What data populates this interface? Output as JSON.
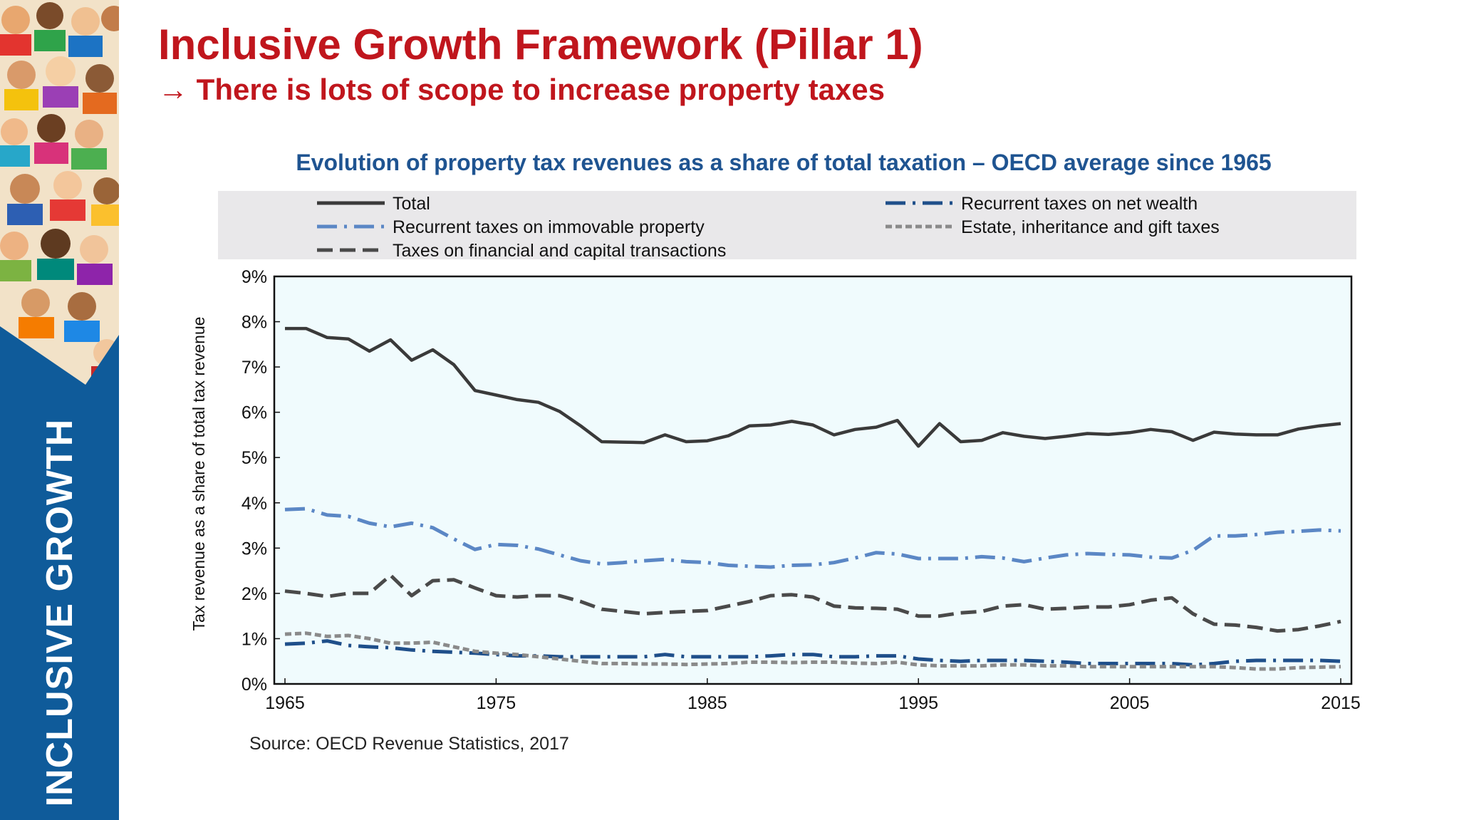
{
  "slide": {
    "title": "Inclusive Growth Framework (Pillar 1)",
    "subtitle": "→ There is lots of scope to increase property taxes",
    "sidebar_label": "INCLUSIVE GROWTH",
    "source": "Source: OECD Revenue Statistics, 2017"
  },
  "colors": {
    "title": "#c0161d",
    "chart_title": "#1f5491",
    "sidebar": "#0f5b9a",
    "plot_bg": "#f0fbfd",
    "legend_bg": "#e9e8ea"
  },
  "chart_data": {
    "type": "line",
    "title": "Evolution of property tax revenues as a share of total taxation – OECD average since 1965",
    "ylabel": "Tax revenue as a share of total tax revenue",
    "xlabel": "",
    "xlim": [
      1965,
      2015
    ],
    "ylim": [
      0,
      9
    ],
    "x_ticks": [
      "1965",
      "1975",
      "1985",
      "1995",
      "2005",
      "2015"
    ],
    "y_ticks": [
      "0%",
      "1%",
      "2%",
      "3%",
      "4%",
      "5%",
      "6%",
      "7%",
      "8%",
      "9%"
    ],
    "legend_position": "top",
    "grid": false,
    "x": [
      1965,
      1966,
      1967,
      1968,
      1969,
      1970,
      1971,
      1972,
      1973,
      1974,
      1975,
      1976,
      1977,
      1978,
      1979,
      1980,
      1981,
      1982,
      1983,
      1984,
      1985,
      1986,
      1987,
      1988,
      1989,
      1990,
      1991,
      1992,
      1993,
      1994,
      1995,
      1996,
      1997,
      1998,
      1999,
      2000,
      2001,
      2002,
      2003,
      2004,
      2005,
      2006,
      2007,
      2008,
      2009,
      2010,
      2011,
      2012,
      2013,
      2014,
      2015
    ],
    "series": [
      {
        "name": "Total",
        "style": "solid",
        "color": "#3a3a3a",
        "values": [
          7.85,
          7.85,
          7.65,
          7.62,
          7.35,
          7.6,
          7.15,
          7.38,
          7.05,
          6.48,
          6.38,
          6.28,
          6.22,
          6.02,
          5.7,
          5.35,
          5.34,
          5.33,
          5.5,
          5.35,
          5.37,
          5.48,
          5.7,
          5.72,
          5.8,
          5.72,
          5.5,
          5.62,
          5.67,
          5.82,
          5.25,
          5.75,
          5.35,
          5.38,
          5.55,
          5.47,
          5.42,
          5.47,
          5.53,
          5.51,
          5.55,
          5.62,
          5.57,
          5.38,
          5.56,
          5.52,
          5.5,
          5.5,
          5.63,
          5.7,
          5.75
        ]
      },
      {
        "name": "Recurrent taxes on immovable property",
        "style": "dashdot",
        "color": "#5b87c5",
        "values": [
          3.85,
          3.87,
          3.73,
          3.7,
          3.55,
          3.47,
          3.55,
          3.45,
          3.2,
          2.97,
          3.08,
          3.06,
          2.98,
          2.85,
          2.72,
          2.65,
          2.68,
          2.72,
          2.75,
          2.7,
          2.68,
          2.62,
          2.6,
          2.58,
          2.62,
          2.63,
          2.68,
          2.78,
          2.9,
          2.87,
          2.77,
          2.77,
          2.77,
          2.81,
          2.78,
          2.7,
          2.78,
          2.85,
          2.88,
          2.86,
          2.85,
          2.8,
          2.78,
          2.95,
          3.27,
          3.27,
          3.3,
          3.35,
          3.37,
          3.4,
          3.38
        ]
      },
      {
        "name": "Taxes on financial and capital transactions",
        "style": "dash",
        "color": "#4a4a4a",
        "values": [
          2.05,
          2.0,
          1.93,
          2.0,
          2.0,
          2.4,
          1.95,
          2.28,
          2.3,
          2.12,
          1.95,
          1.92,
          1.95,
          1.95,
          1.82,
          1.65,
          1.6,
          1.55,
          1.58,
          1.6,
          1.62,
          1.72,
          1.82,
          1.95,
          1.97,
          1.92,
          1.72,
          1.68,
          1.67,
          1.65,
          1.5,
          1.5,
          1.57,
          1.6,
          1.72,
          1.75,
          1.65,
          1.67,
          1.7,
          1.7,
          1.75,
          1.85,
          1.9,
          1.55,
          1.32,
          1.3,
          1.25,
          1.17,
          1.2,
          1.28,
          1.38
        ]
      },
      {
        "name": "Recurrent taxes on net wealth",
        "style": "dashdot",
        "color": "#1f4f8a",
        "values": [
          0.88,
          0.9,
          0.95,
          0.85,
          0.82,
          0.8,
          0.75,
          0.72,
          0.7,
          0.68,
          0.65,
          0.62,
          0.62,
          0.6,
          0.6,
          0.6,
          0.6,
          0.6,
          0.65,
          0.6,
          0.6,
          0.6,
          0.6,
          0.62,
          0.65,
          0.65,
          0.6,
          0.6,
          0.62,
          0.62,
          0.55,
          0.52,
          0.5,
          0.52,
          0.52,
          0.52,
          0.5,
          0.48,
          0.45,
          0.45,
          0.45,
          0.45,
          0.45,
          0.42,
          0.45,
          0.5,
          0.52,
          0.52,
          0.52,
          0.52,
          0.5
        ]
      },
      {
        "name": "Estate, inheritance and gift taxes",
        "style": "shortdash",
        "color": "#8a8a8a",
        "values": [
          1.1,
          1.12,
          1.05,
          1.07,
          1.0,
          0.9,
          0.9,
          0.92,
          0.82,
          0.72,
          0.68,
          0.65,
          0.6,
          0.55,
          0.5,
          0.45,
          0.45,
          0.44,
          0.44,
          0.43,
          0.44,
          0.45,
          0.48,
          0.48,
          0.47,
          0.48,
          0.48,
          0.46,
          0.45,
          0.48,
          0.42,
          0.4,
          0.4,
          0.4,
          0.42,
          0.42,
          0.4,
          0.4,
          0.38,
          0.38,
          0.38,
          0.38,
          0.38,
          0.38,
          0.38,
          0.36,
          0.33,
          0.33,
          0.36,
          0.37,
          0.38
        ]
      }
    ]
  }
}
